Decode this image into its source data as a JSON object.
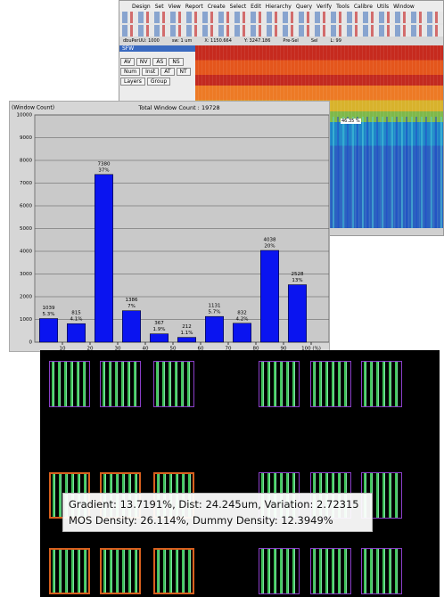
{
  "window": {
    "menu": [
      "Design",
      "Set",
      "View",
      "Report",
      "Create",
      "Select",
      "Edit",
      "Hierarchy",
      "Query",
      "Verify",
      "Tools",
      "Calibre",
      "Utils",
      "Window"
    ],
    "coords": [
      "dbuPerUU: 1000",
      "sw: 1 um",
      "X: 1150.664",
      "Y: 3247.186",
      "Pre-Sel",
      "Sel",
      "L: 99"
    ],
    "panel": {
      "title": "SFW",
      "buttons": [
        "AV",
        "NV",
        "AS",
        "NS"
      ],
      "checks": [
        "Num",
        "Inst",
        "AT",
        "NT"
      ],
      "tabs": [
        "Layers",
        "Group"
      ]
    },
    "heatmap_label": "46.35 %"
  },
  "chart_data": {
    "type": "histogram",
    "title": "Total Window Count : 19728",
    "ylabel": "(Window Count)",
    "bins": [
      0,
      10,
      20,
      30,
      40,
      50,
      60,
      70,
      80,
      90,
      100
    ],
    "values": [
      1039,
      815,
      7380,
      1386,
      367,
      212,
      1131,
      832,
      4038,
      2528
    ],
    "percent_labels": [
      "5.3%",
      "4.1%",
      "37%",
      "7%",
      "1.9%",
      "1.1%",
      "5.7%",
      "4.2%",
      "20%",
      "13%"
    ],
    "color": "#0a14f0",
    "xlim": [
      0,
      100
    ],
    "ylim": [
      0,
      10000
    ],
    "xticks": [
      10,
      20,
      30,
      40,
      50,
      60,
      70,
      80,
      90,
      {
        "value": 100,
        "label": "100 (%)"
      }
    ],
    "yticks": [
      0,
      1000,
      2000,
      3000,
      4000,
      5000,
      6000,
      7000,
      8000,
      9000,
      10000
    ],
    "grid": true
  },
  "layout_overlay": {
    "lines": [
      "Gradient: 13.7191%, Dist: 24.245um, Variation: 2.72315",
      "MOS Density: 26.114%, Dummy Density: 12.3949%"
    ]
  }
}
